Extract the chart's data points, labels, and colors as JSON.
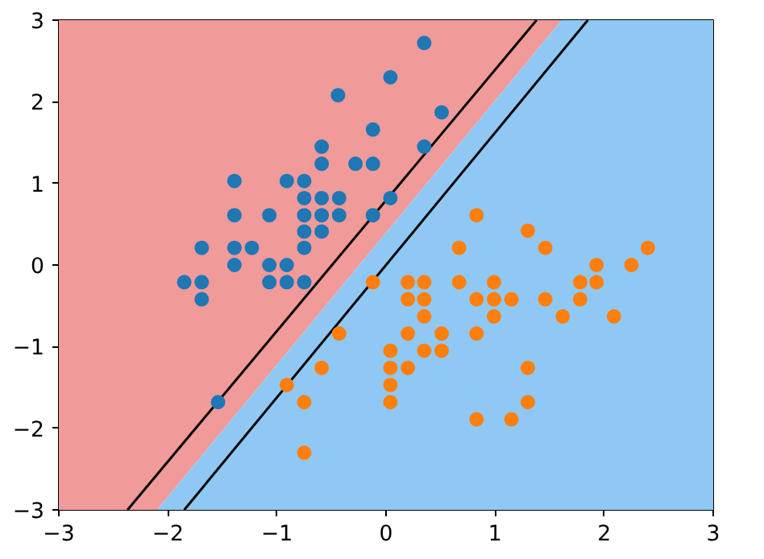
{
  "chart_data": {
    "type": "scatter",
    "xlim": [
      -3,
      3
    ],
    "ylim": [
      -3,
      3
    ],
    "xticks": [
      {
        "value": -3,
        "label": "−3"
      },
      {
        "value": -2,
        "label": "−2"
      },
      {
        "value": -1,
        "label": "−1"
      },
      0,
      1,
      2,
      3
    ],
    "yticks": [
      {
        "value": -3,
        "label": "−3"
      },
      {
        "value": -2,
        "label": "−2"
      },
      {
        "value": -1,
        "label": "−1"
      },
      0,
      1,
      2,
      3
    ],
    "grid": false,
    "series": [
      {
        "type": "area",
        "color": "#f09a9a",
        "x": [
          -3,
          -3,
          1.61,
          -2.1
        ],
        "values": [
          -3,
          3,
          3,
          -3
        ]
      },
      {
        "type": "area",
        "color": "#90c8f4",
        "x": [
          -2.1,
          1.61,
          3,
          3
        ],
        "values": [
          -3,
          3,
          3,
          -3
        ]
      },
      {
        "type": "line",
        "color": "#000000",
        "x": [
          -2.37,
          1.38
        ],
        "values": [
          -3,
          3
        ]
      },
      {
        "type": "line",
        "color": "#000000",
        "x": [
          -1.85,
          1.85
        ],
        "values": [
          -3,
          3
        ]
      },
      {
        "marker": "circle",
        "color": "#1f77b4",
        "x": [
          0.04,
          -0.44,
          -0.12,
          -0.59,
          -0.59,
          -0.28,
          -0.12,
          -1.39,
          -0.91,
          -0.75,
          -0.75,
          -0.59,
          -0.43,
          0.04,
          -1.39,
          -1.07,
          -0.75,
          -0.59,
          -0.43,
          -0.12,
          -0.75,
          -0.59,
          -1.69,
          -1.39,
          -1.23,
          -0.75,
          -1.39,
          -1.07,
          -0.91,
          -1.85,
          -1.69,
          -1.07,
          -0.91,
          -0.75,
          -1.69,
          0.35,
          0.51,
          0.35,
          -1.54
        ],
        "values": [
          2.3,
          2.08,
          1.66,
          1.45,
          1.24,
          1.24,
          1.24,
          1.03,
          1.03,
          1.03,
          0.82,
          0.82,
          0.82,
          0.82,
          0.61,
          0.61,
          0.61,
          0.61,
          0.61,
          0.61,
          0.41,
          0.41,
          0.21,
          0.21,
          0.21,
          0.21,
          0,
          0,
          0,
          -0.21,
          -0.21,
          -0.21,
          -0.21,
          -0.21,
          -0.42,
          2.72,
          1.87,
          1.45,
          -1.68
        ]
      },
      {
        "marker": "circle",
        "color": "#ff7f0e",
        "x": [
          0.83,
          1.3,
          0.67,
          1.46,
          2.4,
          1.93,
          2.25,
          -0.12,
          0.2,
          0.35,
          0.67,
          0.99,
          1.78,
          1.93,
          0.2,
          0.35,
          0.83,
          0.99,
          1.15,
          1.46,
          1.78,
          0.35,
          0.99,
          1.62,
          2.09,
          -0.43,
          0.2,
          0.51,
          0.83,
          0.04,
          0.35,
          0.51,
          -0.59,
          0.04,
          0.2,
          1.3,
          0.04,
          0.04,
          1.3,
          0.83,
          1.15,
          -0.91,
          -0.75,
          -0.75
        ],
        "values": [
          0.61,
          0.42,
          0.21,
          0.21,
          0.21,
          0,
          0,
          -0.21,
          -0.21,
          -0.21,
          -0.21,
          -0.21,
          -0.21,
          -0.21,
          -0.42,
          -0.42,
          -0.42,
          -0.42,
          -0.42,
          -0.42,
          -0.42,
          -0.63,
          -0.63,
          -0.63,
          -0.63,
          -0.84,
          -0.84,
          -0.84,
          -0.84,
          -1.05,
          -1.05,
          -1.05,
          -1.26,
          -1.26,
          -1.26,
          -1.26,
          -1.47,
          -1.68,
          -1.68,
          -1.89,
          -1.89,
          -1.47,
          -1.68,
          -2.3
        ]
      }
    ]
  }
}
